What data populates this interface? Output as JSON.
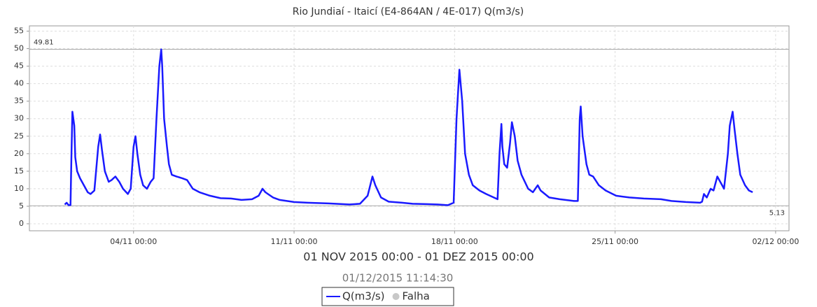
{
  "chart_data": {
    "type": "line",
    "title": "Rio Jundiaí - Itaicí (E4-864AN / 4E-017) Q(m3/s)",
    "subtitle": "01 NOV 2015 00:00 - 01 DEZ 2015 00:00",
    "timestamp": "01/12/2015 11:14:30",
    "x": [
      "2015-11-01T00:00",
      "2015-11-01T02:00",
      "2015-11-01T04:00",
      "2015-11-01T06:00",
      "2015-11-01T07:00",
      "2015-11-01T08:00",
      "2015-11-01T10:00",
      "2015-11-01T11:00",
      "2015-11-01T13:00",
      "2015-11-01T16:00",
      "2015-11-01T20:00",
      "2015-11-02T00:00",
      "2015-11-02T03:00",
      "2015-11-02T07:00",
      "2015-11-02T11:00",
      "2015-11-02T13:00",
      "2015-11-02T15:00",
      "2015-11-02T18:00",
      "2015-11-02T22:00",
      "2015-11-03T01:00",
      "2015-11-03T05:00",
      "2015-11-03T09:00",
      "2015-11-03T13:00",
      "2015-11-03T18:00",
      "2015-11-03T21:00",
      "2015-11-04T00:00",
      "2015-11-04T02:00",
      "2015-11-04T04:00",
      "2015-11-04T07:00",
      "2015-11-04T10:00",
      "2015-11-04T14:00",
      "2015-11-04T18:00",
      "2015-11-04T21:00",
      "2015-11-05T00:00",
      "2015-11-05T03:00",
      "2015-11-05T05:00",
      "2015-11-05T06:00",
      "2015-11-05T08:00",
      "2015-11-05T11:00",
      "2015-11-05T13:00",
      "2015-11-05T16:00",
      "2015-11-05T21:00",
      "2015-11-06T03:00",
      "2015-11-06T08:00",
      "2015-11-06T14:00",
      "2015-11-06T21:00",
      "2015-11-07T08:00",
      "2015-11-07T19:00",
      "2015-11-08T06:00",
      "2015-11-08T17:00",
      "2015-11-09T04:00",
      "2015-11-09T11:00",
      "2015-11-09T15:00",
      "2015-11-09T18:00",
      "2015-11-10T02:00",
      "2015-11-10T09:00",
      "2015-11-11T00:00",
      "2015-11-11T14:00",
      "2015-11-12T12:00",
      "2015-11-13T10:00",
      "2015-11-13T21:00",
      "2015-11-14T05:00",
      "2015-11-14T10:00",
      "2015-11-14T13:00",
      "2015-11-14T19:00",
      "2015-11-15T03:00",
      "2015-11-15T17:00",
      "2015-11-16T04:00",
      "2015-11-16T19:00",
      "2015-11-17T06:00",
      "2015-11-17T17:00",
      "2015-11-17T23:00",
      "2015-11-18T02:00",
      "2015-11-18T05:00",
      "2015-11-18T08:00",
      "2015-11-18T11:00",
      "2015-11-18T15:00",
      "2015-11-18T19:00",
      "2015-11-19T02:00",
      "2015-11-19T09:00",
      "2015-11-19T17:00",
      "2015-11-19T21:00",
      "2015-11-19T23:00",
      "2015-11-20T01:00",
      "2015-11-20T02:00",
      "2015-11-20T04:00",
      "2015-11-20T07:00",
      "2015-11-20T10:00",
      "2015-11-20T12:00",
      "2015-11-20T15:00",
      "2015-11-20T18:00",
      "2015-11-20T22:00",
      "2015-11-21T05:00",
      "2015-11-21T10:00",
      "2015-11-21T15:00",
      "2015-11-21T18:00",
      "2015-11-22T03:00",
      "2015-11-22T14:00",
      "2015-11-23T05:00",
      "2015-11-23T09:00",
      "2015-11-23T11:00",
      "2015-11-23T12:00",
      "2015-11-23T14:00",
      "2015-11-23T18:00",
      "2015-11-23T21:00",
      "2015-11-24T01:00",
      "2015-11-24T07:00",
      "2015-11-24T14:00",
      "2015-11-25T01:00",
      "2015-11-25T15:00",
      "2015-11-26T06:00",
      "2015-11-27T00:00",
      "2015-11-27T11:00",
      "2015-11-28T02:00",
      "2015-11-28T17:00",
      "2015-11-28T19:00",
      "2015-11-28T21:00",
      "2015-11-29T00:00",
      "2015-11-29T04:00",
      "2015-11-29T07:00",
      "2015-11-29T11:00",
      "2015-11-29T15:00",
      "2015-11-29T18:00",
      "2015-11-29T22:00",
      "2015-11-30T00:00",
      "2015-11-30T03:00",
      "2015-11-30T05:00",
      "2015-11-30T08:00",
      "2015-11-30T11:00",
      "2015-11-30T16:00",
      "2015-11-30T20:00",
      "2015-12-01T00:00"
    ],
    "series": [
      {
        "name": "Q(m3/s)",
        "color": "#1a1aff",
        "values": [
          5.5,
          6,
          5.3,
          5.3,
          20,
          32,
          28,
          19,
          15,
          13,
          11,
          9,
          8.5,
          9.5,
          22,
          25.5,
          21,
          15,
          12,
          12.5,
          13.5,
          12,
          10,
          8.5,
          10,
          22,
          25,
          20,
          14,
          11,
          10,
          12,
          13,
          30,
          45,
          49.8,
          45,
          30,
          22,
          17,
          14,
          13.5,
          13,
          12.5,
          10,
          9,
          8,
          7.3,
          7.2,
          6.8,
          7,
          8,
          10,
          9,
          7.5,
          6.8,
          6.2,
          6,
          5.8,
          5.5,
          5.7,
          8,
          13.5,
          11,
          7.5,
          6.3,
          6,
          5.7,
          5.6,
          5.5,
          5.3,
          6,
          30,
          44,
          35,
          20,
          14,
          11,
          9.5,
          8.5,
          7.5,
          7,
          20,
          28.5,
          22,
          17,
          16,
          23,
          29,
          25,
          18,
          14,
          10,
          9,
          11,
          9.5,
          7.5,
          7,
          6.5,
          6.5,
          30,
          33.5,
          25,
          17,
          14,
          13.5,
          11,
          9.5,
          8,
          7.5,
          7.2,
          7,
          6.5,
          6.2,
          6,
          6.3,
          8.5,
          7.5,
          10,
          9.5,
          13.5,
          11.5,
          10,
          20,
          28,
          32,
          27,
          20,
          14,
          11,
          9.5,
          9
        ]
      }
    ],
    "legend_extra": [
      {
        "name": "Falha",
        "color": "#c8c8c8"
      }
    ],
    "reference_lines": [
      49.81,
      5.13
    ],
    "xlim": [
      "2015-10-30T11:00",
      "2015-12-02T14:00"
    ],
    "xticks": [
      {
        "value": "2015-11-04T00:00",
        "label": "04/11 00:00"
      },
      {
        "value": "2015-11-11T00:00",
        "label": "11/11 00:00"
      },
      {
        "value": "2015-11-18T00:00",
        "label": "18/11 00:00"
      },
      {
        "value": "2015-11-25T00:00",
        "label": "25/11 00:00"
      },
      {
        "value": "2015-12-02T00:00",
        "label": "02/12 00:00"
      }
    ],
    "ylim": [
      -2,
      56.5
    ],
    "yticks": [
      0,
      5,
      10,
      15,
      20,
      25,
      30,
      35,
      40,
      45,
      50,
      55
    ],
    "grid": true
  }
}
